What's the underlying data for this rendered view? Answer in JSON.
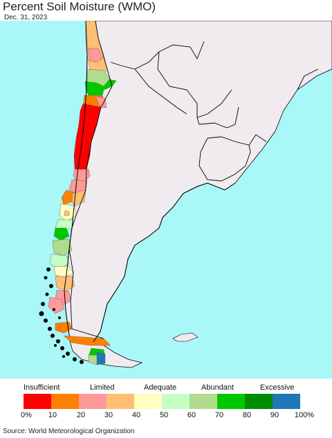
{
  "title": "Percent Soil Moisture (WMO)",
  "date": "Dec. 31, 2023",
  "legend": {
    "categories": [
      "Insufficient",
      "Limited",
      "Adequate",
      "Abundant",
      "Excessive"
    ],
    "ticks": [
      "0%",
      "10",
      "20",
      "30",
      "40",
      "50",
      "60",
      "70",
      "80",
      "90",
      "100%"
    ],
    "colors": [
      "#ff0000",
      "#ff7f00",
      "#ff9999",
      "#ffbf75",
      "#ffffbf",
      "#c5ffc5",
      "#b0dc8c",
      "#00c800",
      "#008c00",
      "#1e78b4"
    ]
  },
  "map_colors": {
    "ocean": "#aaf7f7",
    "land": "#efebef",
    "border": "#000000"
  },
  "source": "Source: World Meteorological Organization"
}
